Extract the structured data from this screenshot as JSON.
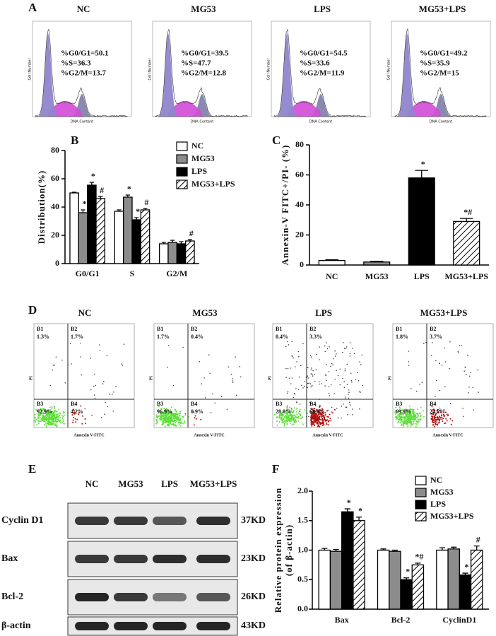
{
  "panel_a": {
    "label": "A",
    "x_label": "DNA Content",
    "y_label": "Cell Number",
    "plots": [
      {
        "title": "NC",
        "stats": [
          "%G0/G1=50.1",
          "%S=36.3",
          "%G2/M=13.7"
        ]
      },
      {
        "title": "MG53",
        "stats": [
          "%G0/G1=39.5",
          "%S=47.7",
          "%G2/M=12.8"
        ]
      },
      {
        "title": "LPS",
        "stats": [
          "%G0/G1=54.5",
          "%S=33.6",
          "%G2/M=11.9"
        ]
      },
      {
        "title": "MG53+LPS",
        "stats": [
          "%G0/G1=49.2",
          "%S=35.9",
          "%G2/M=15"
        ]
      }
    ]
  },
  "chart_data": [
    {
      "panel": "B",
      "type": "bar",
      "y_label": "Distribution(%)",
      "categories": [
        "G0/G1",
        "S",
        "G2/M"
      ],
      "series": [
        {
          "name": "NC",
          "color": "#ffffff",
          "hatched": false,
          "values": [
            50,
            37,
            14
          ],
          "errors": [
            0.5,
            1,
            1
          ],
          "annotations": [
            null,
            null,
            null
          ]
        },
        {
          "name": "MG53",
          "color": "#8c8c8c",
          "hatched": false,
          "values": [
            36,
            47,
            15
          ],
          "errors": [
            2,
            1.5,
            1.5
          ],
          "annotations": [
            "*",
            "*",
            null
          ]
        },
        {
          "name": "LPS",
          "color": "#000000",
          "hatched": false,
          "values": [
            55.5,
            31,
            14
          ],
          "errors": [
            2,
            1.5,
            1.5
          ],
          "annotations": [
            "*",
            "*",
            null
          ]
        },
        {
          "name": "MG53+LPS",
          "color": "#ffffff",
          "hatched": true,
          "values": [
            46,
            38,
            16
          ],
          "errors": [
            1.5,
            1,
            1
          ],
          "annotations": [
            "#",
            "#",
            "#"
          ]
        }
      ],
      "ylim": [
        0,
        80
      ],
      "yticks": [
        0,
        20,
        40,
        60,
        80
      ]
    },
    {
      "panel": "C",
      "type": "bar",
      "y_label": "Annexin-V FITC+/PI- (%)",
      "categories": [
        "NC",
        "MG53",
        "LPS",
        "MG53+LPS"
      ],
      "values": [
        3,
        2,
        58,
        29
      ],
      "errors": [
        0.5,
        0.5,
        5,
        2
      ],
      "colors": [
        "#ffffff",
        "#8c8c8c",
        "#000000",
        "#ffffff"
      ],
      "hatched": [
        false,
        false,
        false,
        true
      ],
      "annotations": [
        null,
        null,
        "*",
        "*#"
      ],
      "ylim": [
        0,
        80
      ],
      "yticks": [
        0,
        20,
        40,
        60,
        80
      ]
    },
    {
      "panel": "F",
      "type": "bar",
      "y_label": [
        "Relative protein expression",
        "(of β-actin)"
      ],
      "categories": [
        "Bax",
        "Bcl-2",
        "CyclinD1"
      ],
      "series": [
        {
          "name": "NC",
          "color": "#ffffff",
          "hatched": false,
          "values": [
            1.0,
            1.0,
            1.0
          ],
          "errors": [
            0.03,
            0.02,
            0.04
          ],
          "annotations": [
            null,
            null,
            null
          ]
        },
        {
          "name": "MG53",
          "color": "#8c8c8c",
          "hatched": false,
          "values": [
            0.98,
            0.98,
            1.02
          ],
          "errors": [
            0.03,
            0.02,
            0.03
          ],
          "annotations": [
            null,
            null,
            null
          ]
        },
        {
          "name": "LPS",
          "color": "#000000",
          "hatched": false,
          "values": [
            1.65,
            0.5,
            0.58
          ],
          "errors": [
            0.05,
            0.03,
            0.03
          ],
          "annotations": [
            "*",
            "*",
            "*"
          ]
        },
        {
          "name": "MG53+LPS",
          "color": "#ffffff",
          "hatched": true,
          "values": [
            1.5,
            0.75,
            1.0
          ],
          "errors": [
            0.06,
            0.03,
            0.07
          ],
          "annotations": [
            "*",
            "*#",
            "#"
          ]
        }
      ],
      "ylim": [
        0,
        2
      ],
      "yticks": [
        {
          "value": 0,
          "label": "0.0"
        },
        0.5,
        {
          "value": 1,
          "label": "1.0"
        },
        1.5,
        {
          "value": 2,
          "label": "2.0"
        }
      ]
    }
  ],
  "panel_d": {
    "label": "D",
    "x_label": "Annexin V-FITC",
    "y_label": "PI",
    "plots": [
      {
        "title": "NC",
        "quadrants": [
          {
            "name": "B1",
            "pct": "1.3%"
          },
          {
            "name": "B2",
            "pct": "1.7%"
          },
          {
            "name": "B3",
            "pct": "92.9%"
          },
          {
            "name": "B4",
            "pct": "4.2%"
          }
        ]
      },
      {
        "title": "MG53",
        "quadrants": [
          {
            "name": "B1",
            "pct": "1.7%"
          },
          {
            "name": "B2",
            "pct": "0.4%"
          },
          {
            "name": "B3",
            "pct": "96.9%"
          },
          {
            "name": "B4",
            "pct": "0.9%"
          }
        ]
      },
      {
        "title": "LPS",
        "quadrants": [
          {
            "name": "B1",
            "pct": "0.4%"
          },
          {
            "name": "B2",
            "pct": "3.3%"
          },
          {
            "name": "B3",
            "pct": "28.0%"
          },
          {
            "name": "B4",
            "pct": "68.3%"
          }
        ]
      },
      {
        "title": "MG53+LPS",
        "quadrants": [
          {
            "name": "B1",
            "pct": "1.8%"
          },
          {
            "name": "B2",
            "pct": "3.7%"
          },
          {
            "name": "B3",
            "pct": "69.9%"
          },
          {
            "name": "B4",
            "pct": "24.6%"
          }
        ]
      }
    ]
  },
  "panel_e": {
    "label": "E",
    "lanes": [
      "NC",
      "MG53",
      "LPS",
      "MG53+LPS"
    ],
    "rows": [
      {
        "name": "Cyclin D1",
        "size": "37KD"
      },
      {
        "name": "Bax",
        "size": "23KD"
      },
      {
        "name": "Bcl-2",
        "size": "26KD"
      },
      {
        "name": "β-actin",
        "size": "43KD"
      }
    ]
  }
}
